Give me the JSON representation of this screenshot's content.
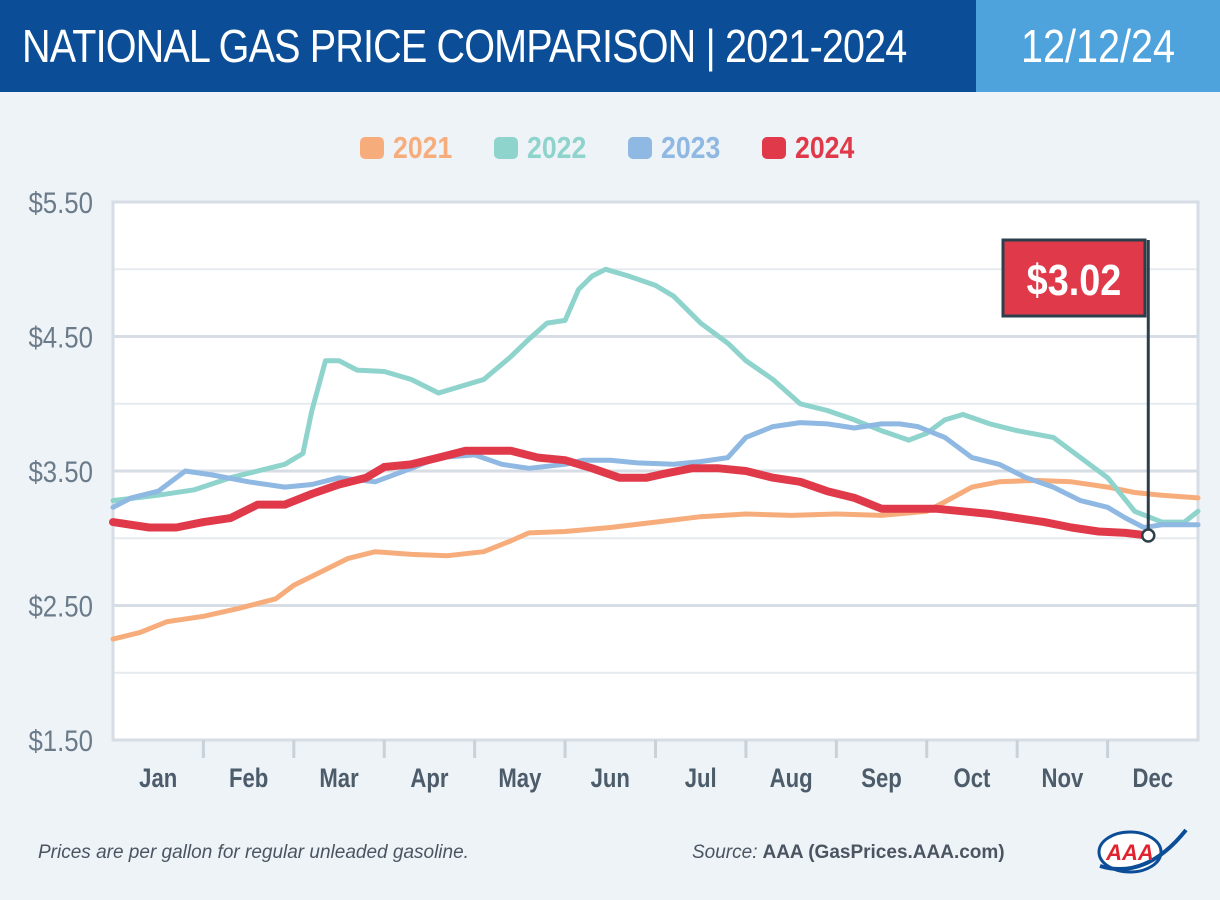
{
  "header": {
    "title": "NATIONAL GAS PRICE COMPARISON | 2021-2024",
    "date": "12/12/24"
  },
  "footer": {
    "note": "Prices are per gallon for regular unleaded gasoline.",
    "source_label": "Source:",
    "source_value": "AAA (GasPrices.AAA.com)",
    "logo_text": "AAA"
  },
  "chart_data": {
    "type": "line",
    "title": "",
    "xlabel": "",
    "ylabel": "",
    "xlim": [
      0,
      12
    ],
    "ylim": [
      1.5,
      5.5
    ],
    "yticks": [
      1.5,
      2.5,
      3.5,
      4.5,
      5.5
    ],
    "ytick_labels": [
      "$1.50",
      "$2.50",
      "$3.50",
      "$4.50",
      "$5.50"
    ],
    "categories": [
      "Jan",
      "Feb",
      "Mar",
      "Apr",
      "May",
      "Jun",
      "Jul",
      "Aug",
      "Sep",
      "Oct",
      "Nov",
      "Dec"
    ],
    "grid": true,
    "legend_position": "top-center",
    "callout": {
      "label": "$3.02",
      "series": "2024",
      "x": 11.45,
      "y": 3.02,
      "color": "#e03a4a"
    },
    "series": [
      {
        "name": "2021",
        "color": "#f7ad7b",
        "points": [
          [
            0,
            2.25
          ],
          [
            0.3,
            2.3
          ],
          [
            0.6,
            2.38
          ],
          [
            1.0,
            2.42
          ],
          [
            1.4,
            2.48
          ],
          [
            1.8,
            2.55
          ],
          [
            2.0,
            2.65
          ],
          [
            2.3,
            2.75
          ],
          [
            2.6,
            2.85
          ],
          [
            2.9,
            2.9
          ],
          [
            3.3,
            2.88
          ],
          [
            3.7,
            2.87
          ],
          [
            4.1,
            2.9
          ],
          [
            4.4,
            2.98
          ],
          [
            4.6,
            3.04
          ],
          [
            5.0,
            3.05
          ],
          [
            5.5,
            3.08
          ],
          [
            6.0,
            3.12
          ],
          [
            6.5,
            3.16
          ],
          [
            7.0,
            3.18
          ],
          [
            7.5,
            3.17
          ],
          [
            8.0,
            3.18
          ],
          [
            8.5,
            3.17
          ],
          [
            9.0,
            3.2
          ],
          [
            9.2,
            3.27
          ],
          [
            9.5,
            3.38
          ],
          [
            9.8,
            3.42
          ],
          [
            10.2,
            3.43
          ],
          [
            10.6,
            3.42
          ],
          [
            11.0,
            3.38
          ],
          [
            11.3,
            3.34
          ],
          [
            11.6,
            3.32
          ],
          [
            12.0,
            3.3
          ]
        ]
      },
      {
        "name": "2022",
        "color": "#8fd3cd",
        "points": [
          [
            0,
            3.28
          ],
          [
            0.5,
            3.32
          ],
          [
            0.9,
            3.36
          ],
          [
            1.3,
            3.45
          ],
          [
            1.6,
            3.5
          ],
          [
            1.9,
            3.55
          ],
          [
            2.1,
            3.63
          ],
          [
            2.2,
            3.95
          ],
          [
            2.35,
            4.32
          ],
          [
            2.5,
            4.32
          ],
          [
            2.7,
            4.25
          ],
          [
            3.0,
            4.24
          ],
          [
            3.3,
            4.18
          ],
          [
            3.6,
            4.08
          ],
          [
            3.8,
            4.12
          ],
          [
            4.1,
            4.18
          ],
          [
            4.4,
            4.35
          ],
          [
            4.6,
            4.48
          ],
          [
            4.8,
            4.6
          ],
          [
            5.0,
            4.62
          ],
          [
            5.15,
            4.85
          ],
          [
            5.3,
            4.95
          ],
          [
            5.45,
            5.0
          ],
          [
            5.7,
            4.95
          ],
          [
            6.0,
            4.88
          ],
          [
            6.2,
            4.8
          ],
          [
            6.5,
            4.6
          ],
          [
            6.8,
            4.45
          ],
          [
            7.0,
            4.32
          ],
          [
            7.3,
            4.18
          ],
          [
            7.6,
            4.0
          ],
          [
            7.9,
            3.95
          ],
          [
            8.2,
            3.88
          ],
          [
            8.5,
            3.8
          ],
          [
            8.8,
            3.73
          ],
          [
            9.0,
            3.78
          ],
          [
            9.2,
            3.88
          ],
          [
            9.4,
            3.92
          ],
          [
            9.7,
            3.85
          ],
          [
            10.0,
            3.8
          ],
          [
            10.4,
            3.75
          ],
          [
            10.7,
            3.6
          ],
          [
            11.0,
            3.45
          ],
          [
            11.3,
            3.2
          ],
          [
            11.6,
            3.12
          ],
          [
            11.85,
            3.12
          ],
          [
            12.0,
            3.2
          ]
        ]
      },
      {
        "name": "2023",
        "color": "#8fb8e2",
        "points": [
          [
            0,
            3.23
          ],
          [
            0.2,
            3.3
          ],
          [
            0.5,
            3.35
          ],
          [
            0.8,
            3.5
          ],
          [
            1.1,
            3.47
          ],
          [
            1.5,
            3.42
          ],
          [
            1.9,
            3.38
          ],
          [
            2.2,
            3.4
          ],
          [
            2.5,
            3.45
          ],
          [
            2.9,
            3.42
          ],
          [
            3.3,
            3.52
          ],
          [
            3.6,
            3.6
          ],
          [
            4.0,
            3.62
          ],
          [
            4.3,
            3.55
          ],
          [
            4.6,
            3.52
          ],
          [
            5.0,
            3.55
          ],
          [
            5.2,
            3.58
          ],
          [
            5.5,
            3.58
          ],
          [
            5.8,
            3.56
          ],
          [
            6.2,
            3.55
          ],
          [
            6.5,
            3.57
          ],
          [
            6.8,
            3.6
          ],
          [
            7.0,
            3.75
          ],
          [
            7.3,
            3.83
          ],
          [
            7.6,
            3.86
          ],
          [
            7.9,
            3.85
          ],
          [
            8.2,
            3.82
          ],
          [
            8.5,
            3.85
          ],
          [
            8.7,
            3.85
          ],
          [
            8.9,
            3.83
          ],
          [
            9.2,
            3.75
          ],
          [
            9.5,
            3.6
          ],
          [
            9.8,
            3.55
          ],
          [
            10.1,
            3.45
          ],
          [
            10.4,
            3.38
          ],
          [
            10.7,
            3.28
          ],
          [
            11.0,
            3.23
          ],
          [
            11.2,
            3.15
          ],
          [
            11.4,
            3.08
          ],
          [
            11.6,
            3.1
          ],
          [
            11.8,
            3.1
          ],
          [
            12.0,
            3.1
          ]
        ]
      },
      {
        "name": "2024",
        "color": "#e03a4a",
        "points": [
          [
            0,
            3.12
          ],
          [
            0.4,
            3.08
          ],
          [
            0.7,
            3.08
          ],
          [
            1.0,
            3.12
          ],
          [
            1.3,
            3.15
          ],
          [
            1.6,
            3.25
          ],
          [
            1.9,
            3.25
          ],
          [
            2.2,
            3.33
          ],
          [
            2.5,
            3.4
          ],
          [
            2.8,
            3.45
          ],
          [
            3.0,
            3.53
          ],
          [
            3.3,
            3.55
          ],
          [
            3.6,
            3.6
          ],
          [
            3.9,
            3.65
          ],
          [
            4.1,
            3.65
          ],
          [
            4.4,
            3.65
          ],
          [
            4.7,
            3.6
          ],
          [
            5.0,
            3.58
          ],
          [
            5.3,
            3.52
          ],
          [
            5.6,
            3.45
          ],
          [
            5.9,
            3.45
          ],
          [
            6.1,
            3.48
          ],
          [
            6.4,
            3.52
          ],
          [
            6.7,
            3.52
          ],
          [
            7.0,
            3.5
          ],
          [
            7.3,
            3.45
          ],
          [
            7.6,
            3.42
          ],
          [
            7.9,
            3.35
          ],
          [
            8.2,
            3.3
          ],
          [
            8.5,
            3.22
          ],
          [
            8.8,
            3.22
          ],
          [
            9.1,
            3.22
          ],
          [
            9.4,
            3.2
          ],
          [
            9.7,
            3.18
          ],
          [
            10.0,
            3.15
          ],
          [
            10.3,
            3.12
          ],
          [
            10.6,
            3.08
          ],
          [
            10.9,
            3.05
          ],
          [
            11.2,
            3.04
          ],
          [
            11.45,
            3.02
          ]
        ]
      }
    ]
  }
}
